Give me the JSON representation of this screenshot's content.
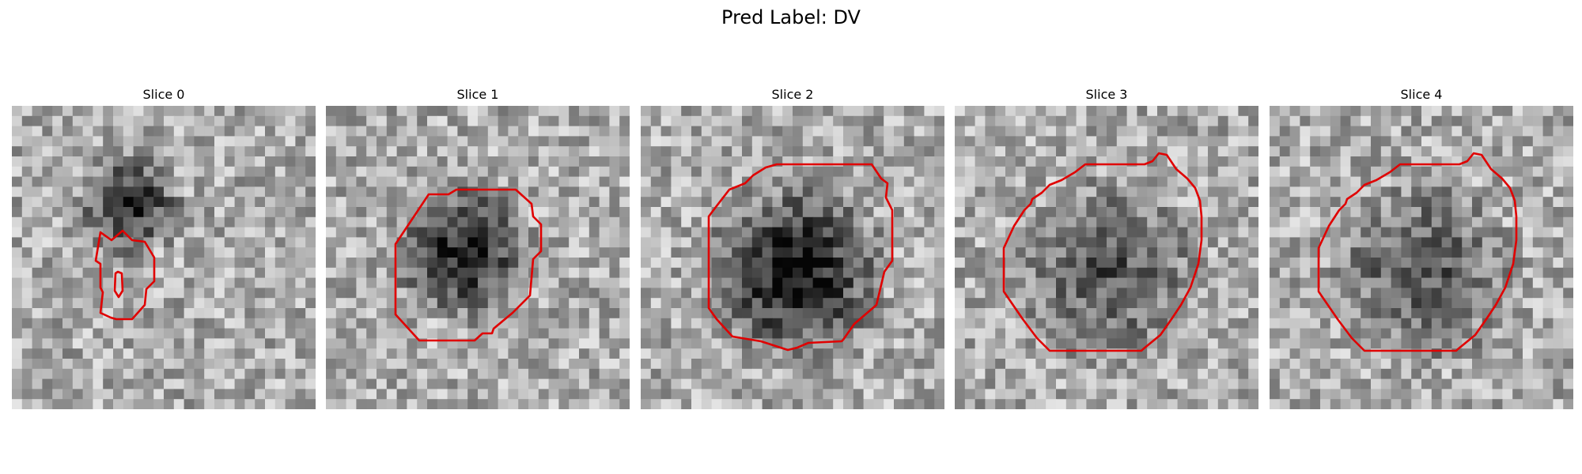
{
  "figure": {
    "title": "Pred Label: DV"
  },
  "colors": {
    "contour": "#e00000",
    "background": "#ffffff"
  },
  "slices": [
    {
      "label": "Slice 0",
      "description": "grayscale patch, small contour"
    },
    {
      "label": "Slice 1",
      "description": "grayscale patch, octagonal contour"
    },
    {
      "label": "Slice 2",
      "description": "grayscale patch, large dark blob contour"
    },
    {
      "label": "Slice 3",
      "description": "grayscale noisy patch, large contour"
    },
    {
      "label": "Slice 4",
      "description": "grayscale noisy patch, large contour"
    }
  ]
}
